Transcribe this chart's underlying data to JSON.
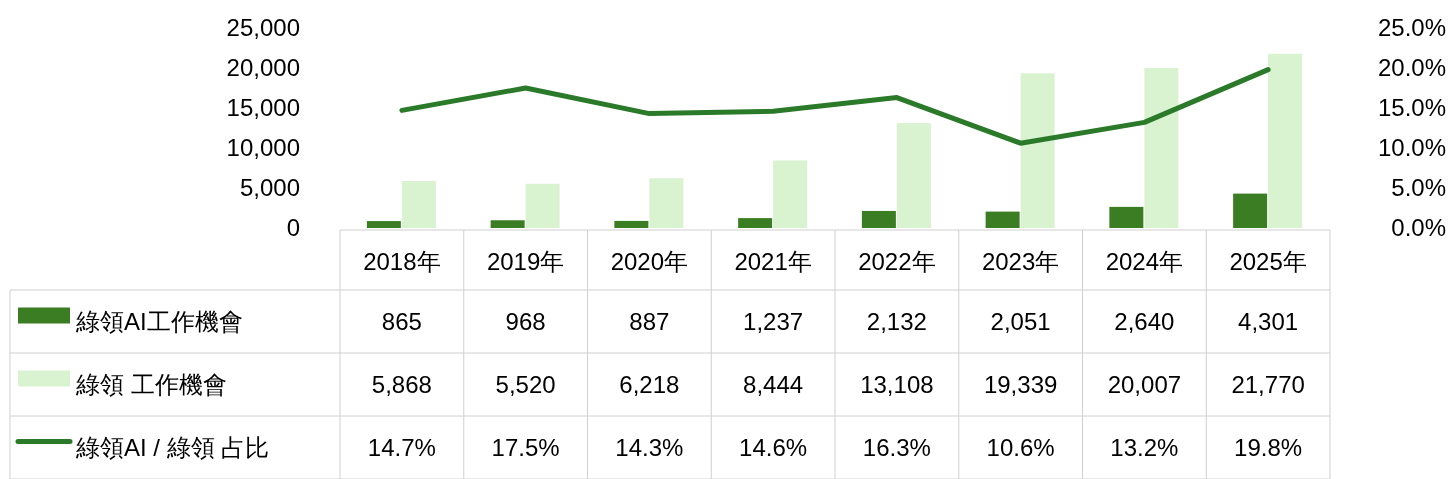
{
  "chart_data": {
    "type": "bar",
    "categories": [
      "2018年",
      "2019年",
      "2020年",
      "2021年",
      "2022年",
      "2023年",
      "2024年",
      "2025年"
    ],
    "series": [
      {
        "name": "綠領AI工作機會",
        "color": "#3b7d23",
        "values": [
          865,
          968,
          887,
          1237,
          2132,
          2051,
          2640,
          4301
        ],
        "value_labels": [
          "865",
          "968",
          "887",
          "1,237",
          "2,132",
          "2,051",
          "2,640",
          "4,301"
        ]
      },
      {
        "name": "綠領 工作機會",
        "color": "#d9f2d0",
        "values": [
          5868,
          5520,
          6218,
          8444,
          13108,
          19339,
          20007,
          21770
        ],
        "value_labels": [
          "5,868",
          "5,520",
          "6,218",
          "8,444",
          "13,108",
          "19,339",
          "20,007",
          "21,770"
        ]
      },
      {
        "name": "綠領AI / 綠領 占比",
        "type": "line",
        "axis": "y2",
        "color": "#2a7a2a",
        "values": [
          14.7,
          17.5,
          14.3,
          14.6,
          16.3,
          10.6,
          13.2,
          19.8
        ],
        "value_labels": [
          "14.7%",
          "17.5%",
          "14.3%",
          "14.6%",
          "16.3%",
          "10.6%",
          "13.2%",
          "19.8%"
        ]
      }
    ],
    "ylim": [
      0,
      25000
    ],
    "yticks": [
      {
        "value": 0,
        "label": "0"
      },
      {
        "value": 5000,
        "label": "5,000"
      },
      {
        "value": 10000,
        "label": "10,000"
      },
      {
        "value": 15000,
        "label": "15,000"
      },
      {
        "value": 20000,
        "label": "20,000"
      },
      {
        "value": 25000,
        "label": "25,000"
      }
    ],
    "y2lim": [
      0,
      25
    ],
    "y2ticks": [
      {
        "value": 0,
        "label": "0.0%"
      },
      {
        "value": 5,
        "label": "5.0%"
      },
      {
        "value": 10,
        "label": "10.0%"
      },
      {
        "value": 15,
        "label": "15.0%"
      },
      {
        "value": 20,
        "label": "20.0%"
      },
      {
        "value": 25,
        "label": "25.0%"
      }
    ],
    "legend": "bottom"
  }
}
